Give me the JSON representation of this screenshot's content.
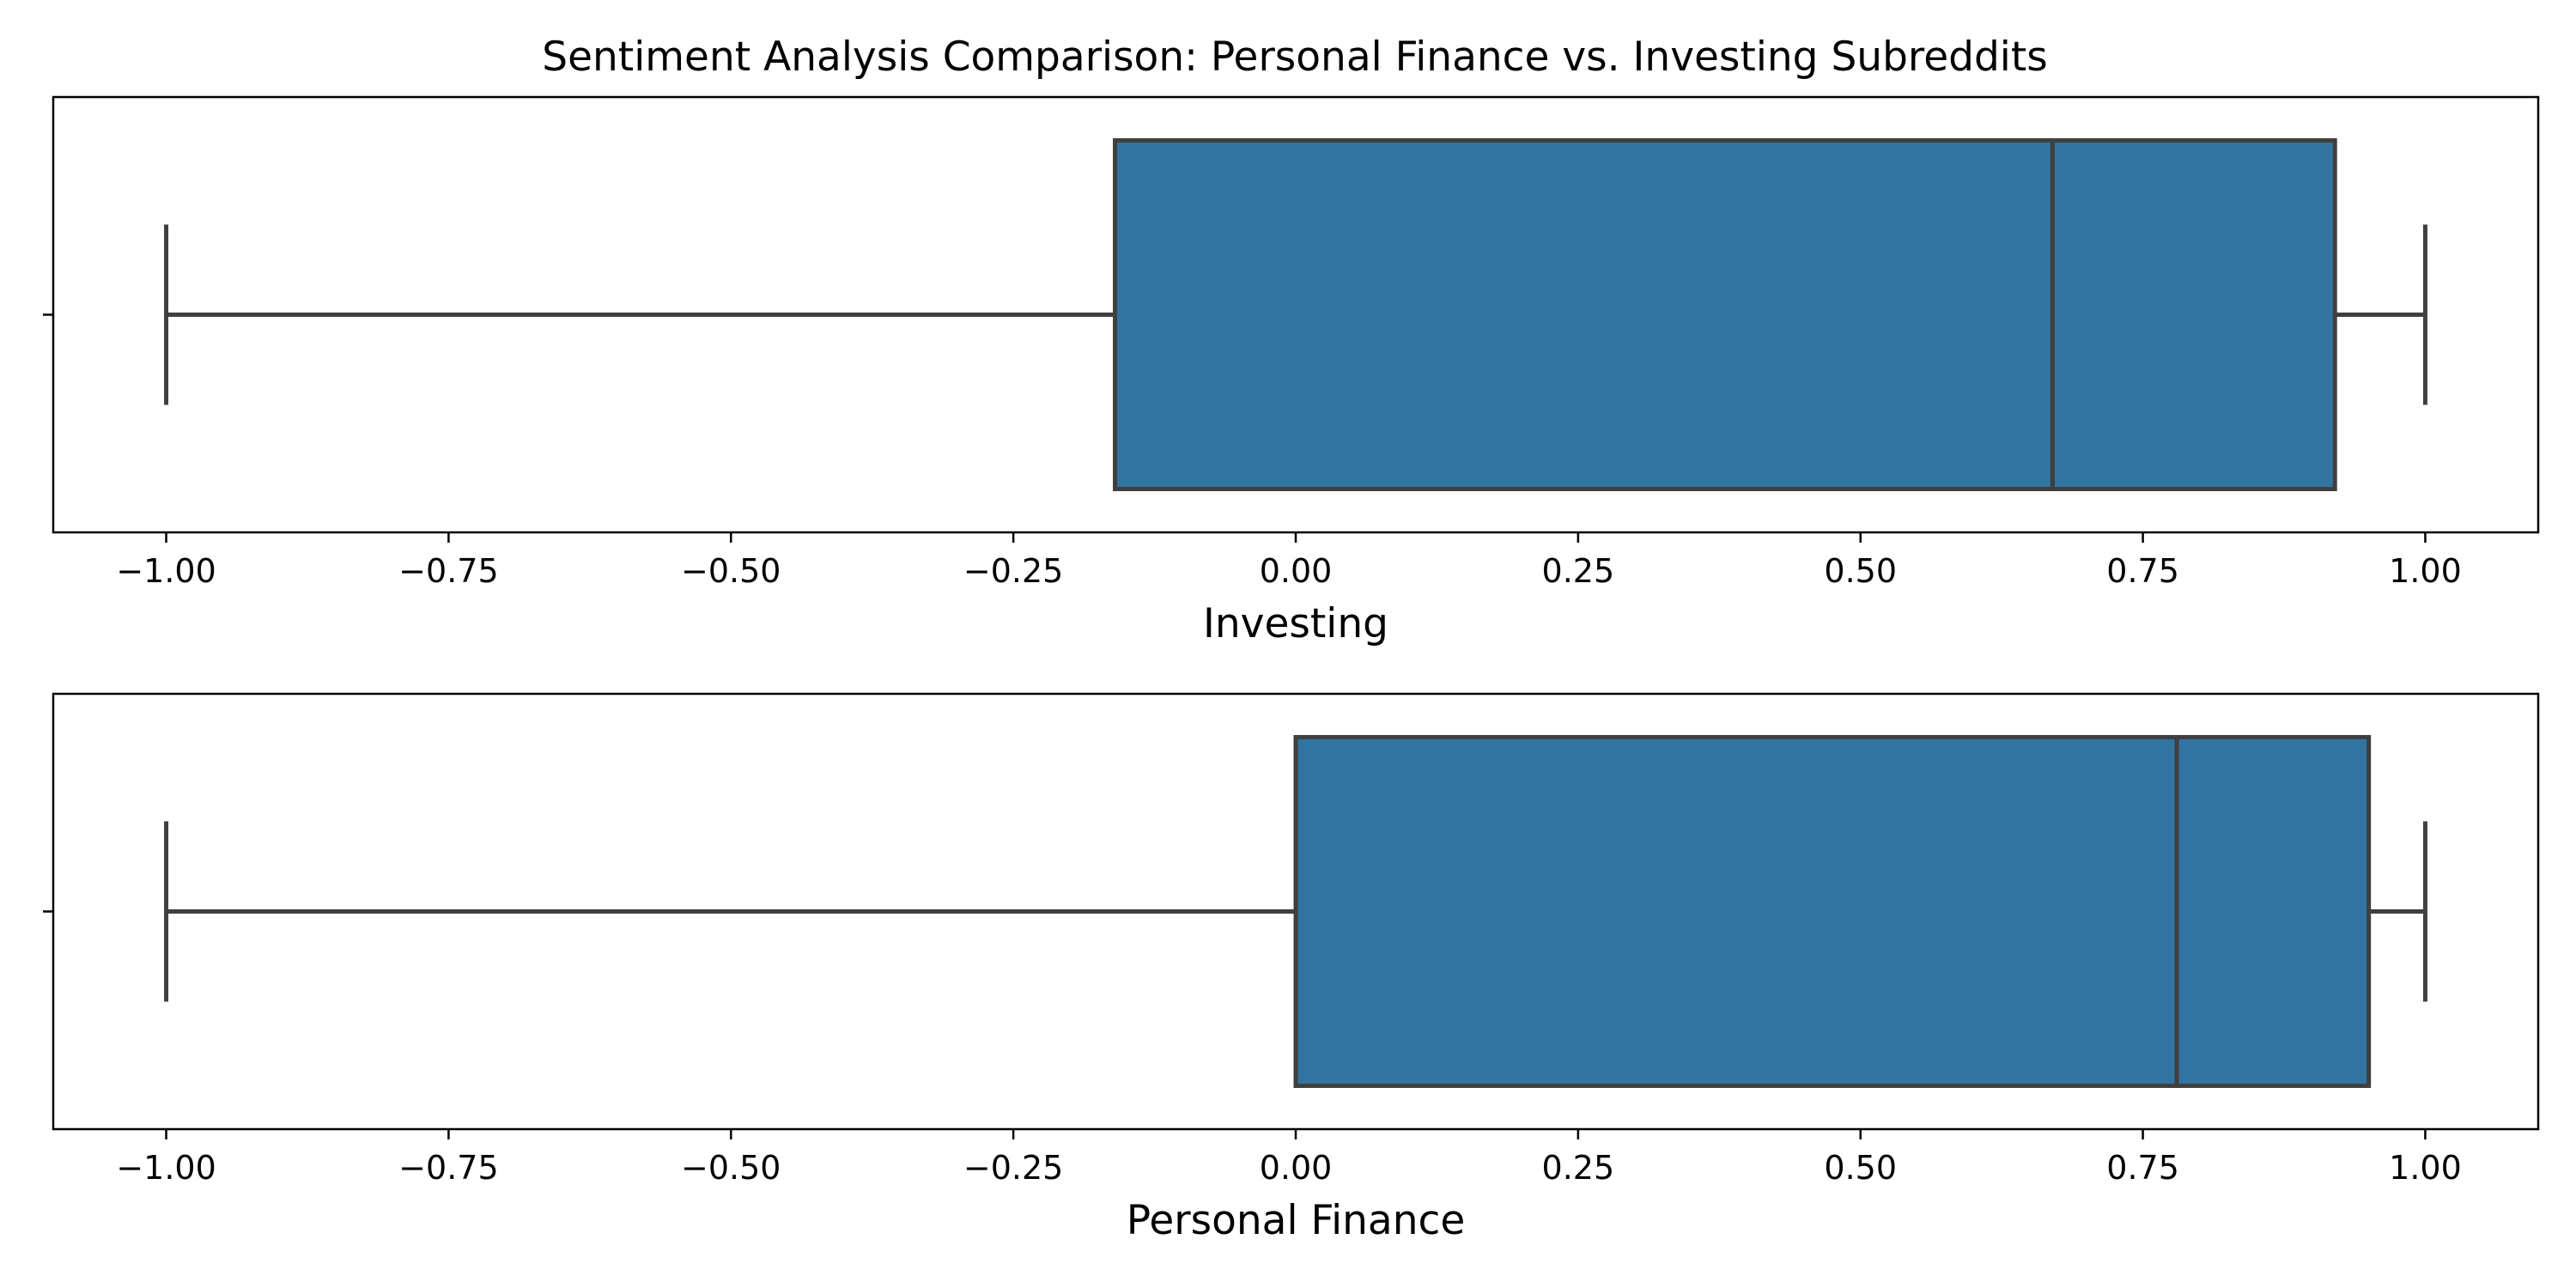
{
  "chart_data": {
    "type": "boxplot",
    "title": "Sentiment Analysis Comparison: Personal Finance vs. Investing Subreddits",
    "orientation": "horizontal",
    "xlim": [
      -1.1,
      1.1
    ],
    "xticks": [
      -1.0,
      -0.75,
      -0.5,
      -0.25,
      0.0,
      0.25,
      0.5,
      0.75,
      1.0
    ],
    "xtick_labels": [
      "−1.00",
      "−0.75",
      "−0.50",
      "−0.25",
      "0.00",
      "0.25",
      "0.50",
      "0.75",
      "1.00"
    ],
    "grid": false,
    "box_color": "#3274a1",
    "line_color": "#3f3f3f",
    "panels": [
      {
        "xlabel": "Investing",
        "stats": {
          "whisker_low": -1.0,
          "q1": -0.16,
          "median": 0.67,
          "q3": 0.92,
          "whisker_high": 1.0
        }
      },
      {
        "xlabel": "Personal Finance",
        "stats": {
          "whisker_low": -1.0,
          "q1": 0.0,
          "median": 0.78,
          "q3": 0.95,
          "whisker_high": 1.0
        }
      }
    ]
  }
}
